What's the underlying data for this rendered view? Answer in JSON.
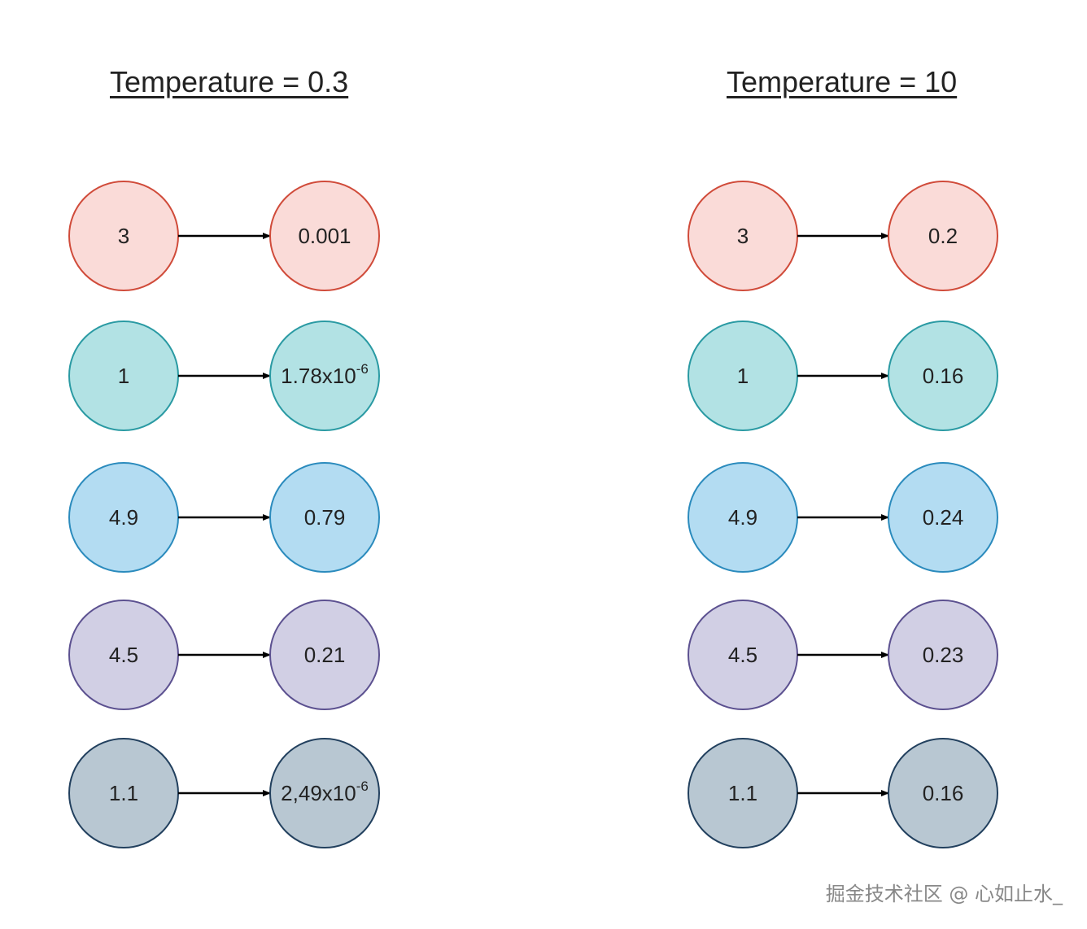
{
  "panels": [
    {
      "title": "Temperature = 0.3",
      "rows": [
        {
          "input": "3",
          "output": "0.001",
          "output_sup": ""
        },
        {
          "input": "1",
          "output": "1.78x10",
          "output_sup": "-6"
        },
        {
          "input": "4.9",
          "output": "0.79",
          "output_sup": ""
        },
        {
          "input": "4.5",
          "output": "0.21",
          "output_sup": ""
        },
        {
          "input": "1.1",
          "output": "2,49x10",
          "output_sup": "-6"
        }
      ]
    },
    {
      "title": "Temperature = 10",
      "rows": [
        {
          "input": "3",
          "output": "0.2",
          "output_sup": ""
        },
        {
          "input": "1",
          "output": "0.16",
          "output_sup": ""
        },
        {
          "input": "4.9",
          "output": "0.24",
          "output_sup": ""
        },
        {
          "input": "4.5",
          "output": "0.23",
          "output_sup": ""
        },
        {
          "input": "1.1",
          "output": "0.16",
          "output_sup": ""
        }
      ]
    }
  ],
  "row_colors": [
    {
      "fill": "#fadbd8",
      "stroke": "#d04b3a"
    },
    {
      "fill": "#b2e2e4",
      "stroke": "#2a9aa3"
    },
    {
      "fill": "#b3dcf2",
      "stroke": "#2b8bbd"
    },
    {
      "fill": "#d1cfe4",
      "stroke": "#5c5190"
    },
    {
      "fill": "#b8c7d2",
      "stroke": "#22405e"
    }
  ],
  "arrow_color": "#000000",
  "watermark": "掘金技术社区 @ 心如止水_"
}
